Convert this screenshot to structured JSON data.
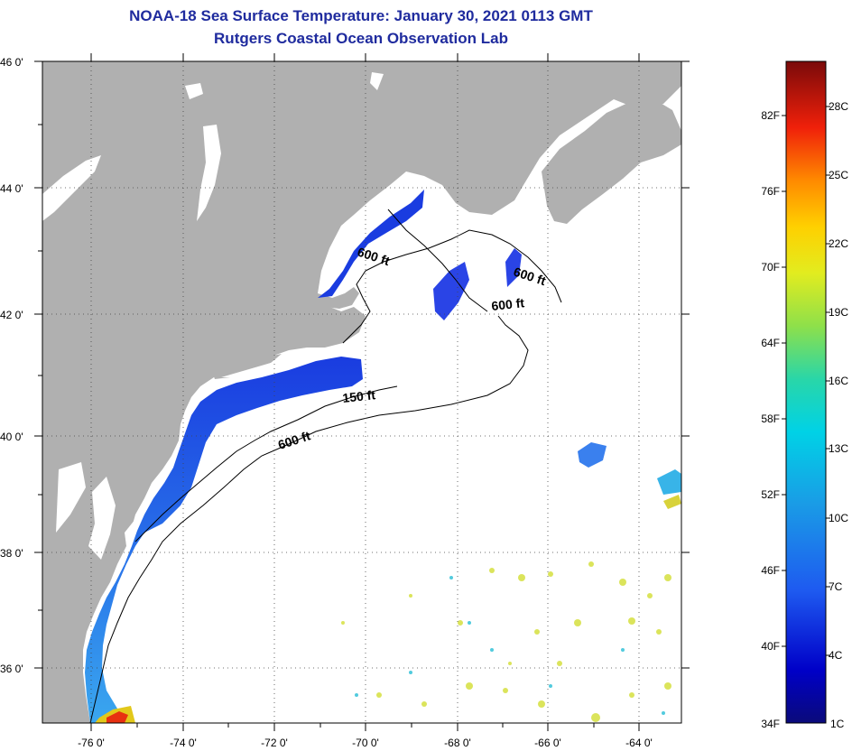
{
  "title": "NOAA-18 Sea Surface Temperature:  January 30, 2021 0113 GMT",
  "subtitle": "Rutgers Coastal Ocean Observation Lab",
  "lat_labels": [
    "46 0'",
    "44 0'",
    "42 0'",
    "40 0'",
    "38 0'",
    "36 0'"
  ],
  "lon_labels": [
    "-76 0'",
    "-74 0'",
    "-72 0'",
    "-70 0'",
    "-68 0'",
    "-66 0'",
    "-64 0'"
  ],
  "contour_labels": [
    {
      "text": "600 ft",
      "rotate": 18
    },
    {
      "text": "600 ft",
      "rotate": 18
    },
    {
      "text": "600 ft",
      "rotate": -6
    },
    {
      "text": "150 ft",
      "rotate": -6
    },
    {
      "text": "600 ft",
      "rotate": -18
    }
  ],
  "colorbar": {
    "fahrenheit": [
      "82F",
      "76F",
      "70F",
      "64F",
      "58F",
      "52F",
      "46F",
      "40F",
      "34F"
    ],
    "celsius": [
      "28C",
      "25C",
      "22C",
      "19C",
      "16C",
      "13C",
      "10C",
      "7C",
      "4C",
      "1C"
    ]
  },
  "colors": {
    "land": "#b0b0b0",
    "ocean": "#ffffff",
    "title": "#1f2b9e"
  }
}
